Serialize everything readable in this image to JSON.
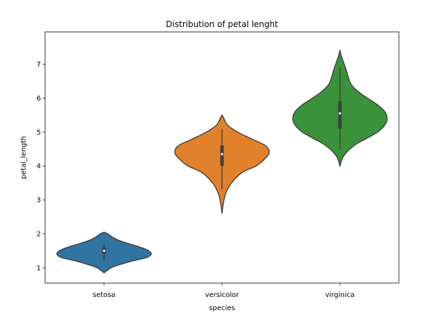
{
  "chart_data": {
    "type": "violin",
    "title": "Distribution of petal lenght",
    "xlabel": "species",
    "ylabel": "petal_length",
    "categories": [
      "setosa",
      "versicolor",
      "virginica"
    ],
    "ylim": [
      0.55,
      7.95
    ],
    "yticks": [
      1,
      2,
      3,
      4,
      5,
      6,
      7
    ],
    "colors": [
      "#3274a1",
      "#e1812c",
      "#3a923a"
    ],
    "series": [
      {
        "median": 1.5,
        "q1": 1.4,
        "q3": 1.6,
        "whisker_low": 1.2,
        "whisker_high": 1.7,
        "density": [
          [
            0.85,
            0.0
          ],
          [
            1.0,
            0.15
          ],
          [
            1.1,
            0.35
          ],
          [
            1.2,
            0.6
          ],
          [
            1.3,
            0.9
          ],
          [
            1.4,
            1.0
          ],
          [
            1.5,
            0.95
          ],
          [
            1.6,
            0.78
          ],
          [
            1.7,
            0.55
          ],
          [
            1.8,
            0.33
          ],
          [
            1.9,
            0.18
          ],
          [
            2.0,
            0.08
          ],
          [
            2.05,
            0.0
          ]
        ]
      },
      {
        "median": 4.35,
        "q1": 4.0,
        "q3": 4.6,
        "whisker_low": 3.3,
        "whisker_high": 5.1,
        "density": [
          [
            2.6,
            0.0
          ],
          [
            2.9,
            0.03
          ],
          [
            3.2,
            0.08
          ],
          [
            3.5,
            0.2
          ],
          [
            3.8,
            0.42
          ],
          [
            4.0,
            0.72
          ],
          [
            4.2,
            0.9
          ],
          [
            4.4,
            1.0
          ],
          [
            4.6,
            0.92
          ],
          [
            4.8,
            0.62
          ],
          [
            5.0,
            0.33
          ],
          [
            5.2,
            0.12
          ],
          [
            5.4,
            0.04
          ],
          [
            5.5,
            0.0
          ]
        ]
      },
      {
        "median": 5.55,
        "q1": 5.1,
        "q3": 5.9,
        "whisker_low": 4.5,
        "whisker_high": 6.9,
        "density": [
          [
            4.0,
            0.0
          ],
          [
            4.3,
            0.08
          ],
          [
            4.6,
            0.3
          ],
          [
            4.8,
            0.55
          ],
          [
            5.0,
            0.8
          ],
          [
            5.2,
            0.95
          ],
          [
            5.4,
            1.0
          ],
          [
            5.6,
            0.95
          ],
          [
            5.8,
            0.8
          ],
          [
            6.0,
            0.58
          ],
          [
            6.2,
            0.38
          ],
          [
            6.4,
            0.24
          ],
          [
            6.6,
            0.18
          ],
          [
            6.8,
            0.14
          ],
          [
            7.0,
            0.09
          ],
          [
            7.2,
            0.04
          ],
          [
            7.4,
            0.0
          ]
        ]
      }
    ]
  }
}
